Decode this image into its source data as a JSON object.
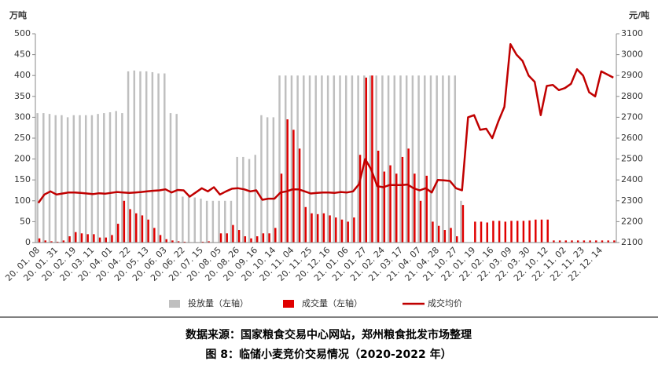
{
  "chart_data": {
    "type": "bar_line",
    "y_label": "万吨",
    "y2_label": "元/吨",
    "categories": [
      "20. 01. 08",
      null,
      null,
      "20. 01. 31",
      null,
      null,
      "20. 02. 19",
      null,
      null,
      "20. 03. 11",
      null,
      null,
      "20. 04. 01",
      null,
      null,
      "20. 04. 22",
      null,
      null,
      "20. 05. 13",
      null,
      null,
      "20. 06. 03",
      null,
      null,
      "20. 06. 22",
      null,
      null,
      "20. 07. 15",
      null,
      null,
      "20. 08. 05",
      null,
      null,
      "20. 08. 26",
      null,
      null,
      "20. 09. 16",
      null,
      null,
      "20. 10. 14",
      null,
      null,
      "20. 11. 04",
      null,
      null,
      "20. 11. 25",
      null,
      null,
      "20. 12. 16",
      null,
      null,
      "21. 01. 06",
      null,
      null,
      "21. 01. 27",
      null,
      null,
      "21. 02. 24",
      null,
      null,
      "21. 03. 17",
      null,
      null,
      "21. 04. 07",
      null,
      null,
      "21. 04. 28",
      null,
      null,
      "21. 10. 27",
      null,
      null,
      "22. 01. 19",
      null,
      null,
      "22. 02. 16",
      null,
      null,
      "22. 03. 09",
      null,
      null,
      "22. 03. 30",
      null,
      null,
      "22. 10. 12",
      null,
      null,
      "22. 11. 02",
      null,
      null,
      "22. 11. 23",
      null,
      null,
      "22. 12. 14",
      null,
      null
    ],
    "series": [
      {
        "name": "投放量（左轴）",
        "color": "#bfbfbf",
        "kind": "bar",
        "values": [
          310,
          310,
          308,
          305,
          305,
          300,
          305,
          305,
          305,
          305,
          308,
          310,
          312,
          315,
          310,
          410,
          412,
          410,
          410,
          408,
          405,
          405,
          310,
          308,
          110,
          110,
          108,
          105,
          100,
          100,
          100,
          100,
          100,
          205,
          205,
          200,
          210,
          305,
          300,
          300,
          400,
          400,
          400,
          400,
          400,
          400,
          400,
          400,
          400,
          400,
          400,
          400,
          400,
          400,
          400,
          400,
          400,
          400,
          400,
          400,
          400,
          400,
          400,
          400,
          400,
          400,
          400,
          400,
          400,
          400,
          100,
          0,
          0,
          0,
          0,
          0,
          0,
          0,
          0,
          0,
          0,
          0,
          0,
          0,
          0,
          0,
          0,
          0,
          0,
          0,
          0,
          0,
          0,
          0,
          0,
          0
        ]
      },
      {
        "name": "成交量（左轴）",
        "color": "#e00000",
        "kind": "bar",
        "values": [
          10,
          5,
          3,
          2,
          5,
          15,
          25,
          22,
          20,
          20,
          12,
          12,
          18,
          45,
          100,
          80,
          70,
          65,
          55,
          35,
          18,
          8,
          5,
          3,
          2,
          1,
          1,
          2,
          3,
          0,
          22,
          22,
          42,
          30,
          15,
          10,
          15,
          22,
          22,
          35,
          165,
          295,
          270,
          225,
          85,
          70,
          68,
          70,
          65,
          60,
          55,
          50,
          60,
          210,
          395,
          400,
          220,
          170,
          185,
          165,
          205,
          225,
          165,
          100,
          160,
          50,
          40,
          30,
          35,
          15,
          90,
          0,
          50,
          50,
          48,
          52,
          52,
          50,
          52,
          52,
          52,
          53,
          55,
          55,
          55,
          5,
          5,
          5,
          5,
          5,
          5,
          5,
          5,
          5,
          5,
          5
        ]
      },
      {
        "name": "成交均价",
        "color": "#c00000",
        "kind": "line",
        "axis": "y2",
        "values": [
          2290,
          2330,
          2345,
          2330,
          2335,
          2340,
          2340,
          2338,
          2335,
          2332,
          2336,
          2334,
          2338,
          2342,
          2340,
          2338,
          2340,
          2342,
          2345,
          2348,
          2350,
          2355,
          2340,
          2352,
          2350,
          2320,
          2340,
          2360,
          2345,
          2365,
          2330,
          2345,
          2358,
          2360,
          2355,
          2345,
          2350,
          2305,
          2310,
          2310,
          2340,
          2345,
          2355,
          2355,
          2345,
          2335,
          2338,
          2340,
          2340,
          2338,
          2342,
          2340,
          2345,
          2380,
          2500,
          2450,
          2370,
          2365,
          2375,
          2375,
          2375,
          2378,
          2360,
          2350,
          2360,
          2340,
          2400,
          2398,
          2395,
          2360,
          2350,
          2700,
          2710,
          2640,
          2645,
          2600,
          2680,
          2750,
          3050,
          3000,
          2970,
          2900,
          2870,
          2710,
          2850,
          2855,
          2830,
          2840,
          2860,
          2930,
          2900,
          2820,
          2800,
          2920,
          2905,
          2890
        ]
      }
    ],
    "ylim": [
      0,
      500
    ],
    "yticks": [
      0,
      50,
      100,
      150,
      200,
      250,
      300,
      350,
      400,
      450,
      500
    ],
    "y2lim": [
      2100,
      3100
    ],
    "y2ticks": [
      2100,
      2200,
      2300,
      2400,
      2500,
      2600,
      2700,
      2800,
      2900,
      3000,
      3100
    ],
    "legend": "bottom",
    "source": "数据来源：国家粮食交易中心网站，郑州粮食批发市场整理",
    "caption": "图 8：临储小麦竞价交易情况（2020-2022 年）"
  }
}
